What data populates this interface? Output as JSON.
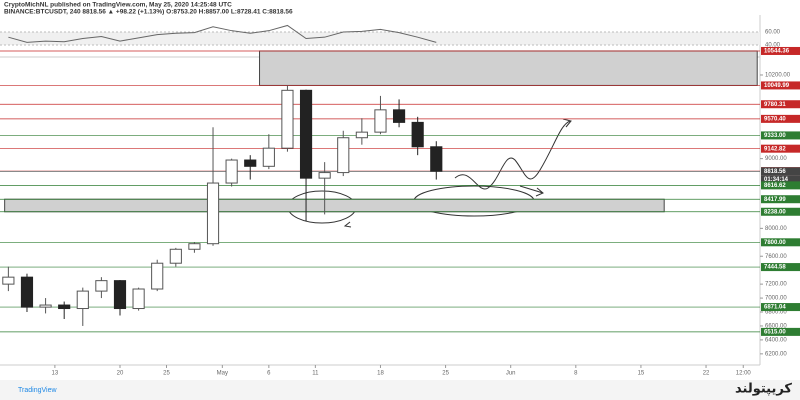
{
  "chart_data": {
    "type": "candlestick",
    "header": [
      "CryptoMichNL published on TradingView.com, May 25, 2020 14:25:48 UTC",
      "BINANCE:BTCUSDT, 240  8818.56 ▲ +98.22 (+1.13%)  O:8753.20  H:8857.00  L:8728.41  C:8818.56"
    ],
    "x": [
      99,
      101,
      103,
      105,
      107,
      109,
      111,
      113,
      115,
      117,
      119,
      121,
      123,
      125,
      127,
      129,
      131,
      133,
      135,
      137,
      139,
      141,
      143,
      145
    ],
    "open": [
      7200,
      7300,
      6870,
      6900,
      6850,
      7100,
      7250,
      6850,
      7130,
      7500,
      7700,
      7780,
      8650,
      8980,
      8890,
      9150,
      9980,
      8720,
      8800,
      9300,
      9380,
      9700,
      9520,
      9170
    ],
    "high": [
      7450,
      7350,
      7000,
      6950,
      7150,
      7300,
      7260,
      7150,
      7550,
      7720,
      7800,
      9450,
      9000,
      9050,
      9350,
      10050,
      9990,
      8950,
      9400,
      9580,
      9900,
      9850,
      9600,
      9250
    ],
    "low": [
      7100,
      6800,
      6780,
      6700,
      6600,
      7000,
      6750,
      6820,
      7100,
      7450,
      7650,
      7750,
      8600,
      8700,
      8850,
      9100,
      8100,
      8200,
      8750,
      9200,
      9350,
      9450,
      9050,
      8700
    ],
    "close": [
      7300,
      6870,
      6900,
      6850,
      7100,
      7250,
      6850,
      7130,
      7500,
      7700,
      7780,
      8650,
      8980,
      8890,
      9150,
      9980,
      8720,
      8800,
      9300,
      9380,
      9700,
      9520,
      9170,
      8818.56
    ],
    "up_color": "#555555",
    "down_color": "#222222",
    "xlim": [
      98.1,
      179.8
    ],
    "xticks": [
      {
        "value": 104,
        "label": "13"
      },
      {
        "value": 111,
        "label": "20"
      },
      {
        "value": 116,
        "label": "25"
      },
      {
        "value": 122,
        "label": "May"
      },
      {
        "value": 127,
        "label": "6"
      },
      {
        "value": 132,
        "label": "11"
      },
      {
        "value": 139,
        "label": "18"
      },
      {
        "value": 146,
        "label": "25"
      },
      {
        "value": 153,
        "label": "Jun"
      },
      {
        "value": 160,
        "label": "8"
      },
      {
        "value": 167,
        "label": "15"
      },
      {
        "value": 174,
        "label": "22"
      },
      {
        "value": 178,
        "label": "12:00"
      }
    ],
    "ylim": [
      6040,
      10630
    ],
    "yticks": [
      {
        "value": 10200,
        "label": "10200.00"
      },
      {
        "value": 9000,
        "label": "9000.00"
      },
      {
        "value": 8000,
        "label": "8000.00"
      },
      {
        "value": 7600,
        "label": "7600.00"
      },
      {
        "value": 7200,
        "label": "7200.00"
      },
      {
        "value": 7000,
        "label": "7000.00"
      },
      {
        "value": 6800,
        "label": "6800.00"
      },
      {
        "value": 6600,
        "label": "6600.00"
      },
      {
        "value": 6400,
        "label": "6400.00"
      },
      {
        "value": 6200,
        "label": "6200.00"
      }
    ],
    "levels": [
      {
        "value": 10544.36,
        "label": "10544.36",
        "color": "#c62828"
      },
      {
        "value": 10049.99,
        "label": "10049.99",
        "color": "#c62828"
      },
      {
        "value": 9780.31,
        "label": "9780.31",
        "color": "#c62828"
      },
      {
        "value": 9570.4,
        "label": "9570.40",
        "color": "#c62828"
      },
      {
        "value": 9333,
        "label": "9333.00",
        "color": "#2e7d32"
      },
      {
        "value": 9142.82,
        "label": "9142.82",
        "color": "#c62828"
      },
      {
        "value": 8820.76,
        "label": "8820.76",
        "color": "#c62828"
      },
      {
        "value": 8818.56,
        "label": "8818.56",
        "color": "#444444"
      },
      {
        "value": 8616.62,
        "label": "8616.62",
        "color": "#2e7d32"
      },
      {
        "value": 8417.99,
        "label": "8417.99",
        "color": "#2e7d32"
      },
      {
        "value": 8238,
        "label": "8238.00",
        "color": "#2e7d32"
      },
      {
        "value": 7800,
        "label": "7800.00",
        "color": "#2e7d32"
      },
      {
        "value": 7444.58,
        "label": "7444.58",
        "color": "#2e7d32"
      },
      {
        "value": 6871.04,
        "label": "6871.04",
        "color": "#2e7d32"
      },
      {
        "value": 6515,
        "label": "6515.00",
        "color": "#2e7d32"
      }
    ],
    "countdown": "01:34:14",
    "zones": [
      {
        "top": 10544.36,
        "bottom": 10049.99,
        "from": 126,
        "to": 179.5
      },
      {
        "top": 8417.99,
        "bottom": 8238,
        "from": 98.6,
        "to": 169.5
      }
    ],
    "rsi": {
      "values": [
        52,
        44,
        46,
        45,
        50,
        53,
        46,
        51,
        56,
        58,
        59,
        68,
        62,
        58,
        62,
        70,
        50,
        52,
        60,
        61,
        64,
        59,
        52,
        44
      ],
      "ylim": [
        24.6,
        81.5
      ],
      "yticks": [
        {
          "value": 60,
          "label": "60.00"
        },
        {
          "value": 40,
          "label": "40.00"
        }
      ],
      "color": "#666666"
    }
  },
  "branding": {
    "logo": "TradingView",
    "watermark": "کریپتولند"
  }
}
